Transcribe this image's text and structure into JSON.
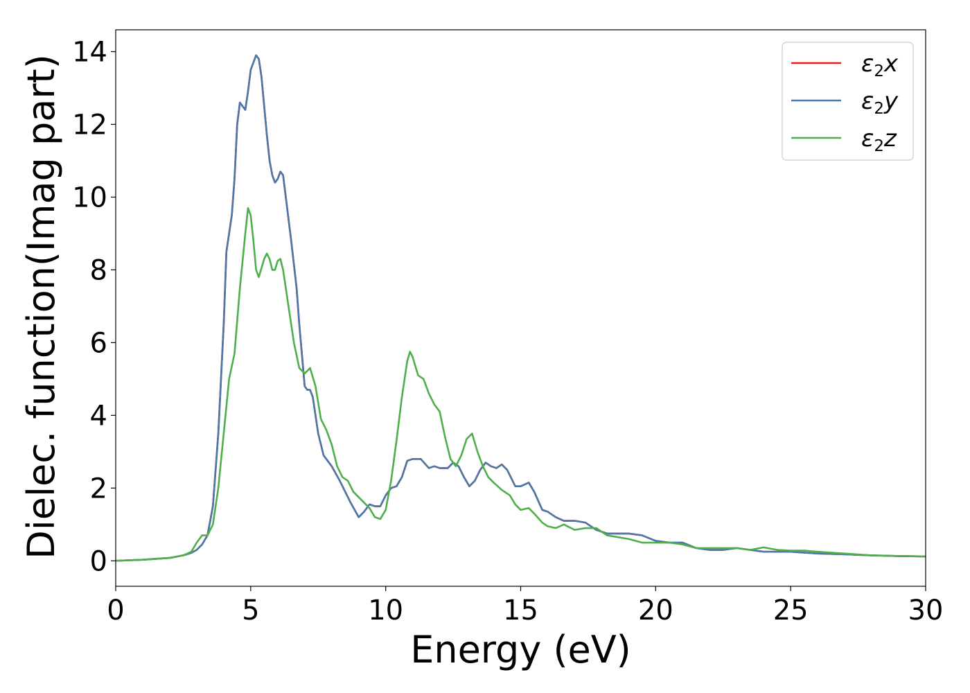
{
  "chart_data": {
    "type": "line",
    "title": "",
    "xlabel": "Energy (eV)",
    "ylabel": "Dielec. function(Imag part)",
    "xlim": [
      0,
      30
    ],
    "ylim": [
      -0.7,
      14.6
    ],
    "xticks": [
      0,
      5,
      10,
      15,
      20,
      25,
      30
    ],
    "yticks": [
      0,
      2,
      4,
      6,
      8,
      10,
      12,
      14
    ],
    "grid": false,
    "legend_position": "top-right",
    "series": [
      {
        "name": "ε2x",
        "legend_sub": "2",
        "legend_base": "ε",
        "legend_axis": "x",
        "color": "#e41a1c",
        "points": [
          [
            0,
            0
          ],
          [
            1,
            0.03
          ],
          [
            2,
            0.08
          ],
          [
            2.5,
            0.15
          ],
          [
            2.8,
            0.22
          ],
          [
            3.0,
            0.3
          ],
          [
            3.2,
            0.45
          ],
          [
            3.4,
            0.7
          ],
          [
            3.6,
            1.5
          ],
          [
            3.8,
            3.5
          ],
          [
            4.0,
            6.5
          ],
          [
            4.1,
            8.5
          ],
          [
            4.2,
            9.0
          ],
          [
            4.3,
            9.5
          ],
          [
            4.4,
            10.5
          ],
          [
            4.5,
            12.0
          ],
          [
            4.6,
            12.6
          ],
          [
            4.7,
            12.5
          ],
          [
            4.8,
            12.4
          ],
          [
            4.9,
            12.9
          ],
          [
            5.0,
            13.5
          ],
          [
            5.1,
            13.7
          ],
          [
            5.2,
            13.9
          ],
          [
            5.3,
            13.8
          ],
          [
            5.4,
            13.3
          ],
          [
            5.5,
            12.5
          ],
          [
            5.6,
            11.7
          ],
          [
            5.7,
            11.0
          ],
          [
            5.8,
            10.6
          ],
          [
            5.9,
            10.4
          ],
          [
            6.0,
            10.5
          ],
          [
            6.1,
            10.7
          ],
          [
            6.2,
            10.6
          ],
          [
            6.3,
            10.0
          ],
          [
            6.5,
            8.8
          ],
          [
            6.7,
            7.5
          ],
          [
            6.8,
            6.5
          ],
          [
            7.0,
            4.8
          ],
          [
            7.1,
            4.7
          ],
          [
            7.2,
            4.7
          ],
          [
            7.3,
            4.5
          ],
          [
            7.5,
            3.5
          ],
          [
            7.7,
            2.9
          ],
          [
            8.0,
            2.6
          ],
          [
            8.3,
            2.2
          ],
          [
            8.5,
            1.9
          ],
          [
            8.7,
            1.6
          ],
          [
            9.0,
            1.2
          ],
          [
            9.2,
            1.35
          ],
          [
            9.4,
            1.55
          ],
          [
            9.6,
            1.5
          ],
          [
            9.8,
            1.5
          ],
          [
            10.0,
            1.8
          ],
          [
            10.2,
            2.0
          ],
          [
            10.4,
            2.05
          ],
          [
            10.6,
            2.3
          ],
          [
            10.8,
            2.75
          ],
          [
            11.0,
            2.8
          ],
          [
            11.3,
            2.8
          ],
          [
            11.6,
            2.55
          ],
          [
            11.8,
            2.6
          ],
          [
            12.0,
            2.55
          ],
          [
            12.3,
            2.55
          ],
          [
            12.5,
            2.7
          ],
          [
            12.7,
            2.6
          ],
          [
            12.9,
            2.3
          ],
          [
            13.1,
            2.05
          ],
          [
            13.3,
            2.2
          ],
          [
            13.5,
            2.5
          ],
          [
            13.7,
            2.7
          ],
          [
            13.9,
            2.6
          ],
          [
            14.1,
            2.55
          ],
          [
            14.3,
            2.65
          ],
          [
            14.5,
            2.5
          ],
          [
            14.8,
            2.05
          ],
          [
            15.0,
            2.05
          ],
          [
            15.3,
            2.15
          ],
          [
            15.5,
            1.9
          ],
          [
            15.8,
            1.4
          ],
          [
            16.0,
            1.35
          ],
          [
            16.3,
            1.2
          ],
          [
            16.6,
            1.1
          ],
          [
            17.0,
            1.1
          ],
          [
            17.4,
            1.05
          ],
          [
            17.8,
            0.85
          ],
          [
            18.2,
            0.75
          ],
          [
            18.6,
            0.75
          ],
          [
            19.0,
            0.75
          ],
          [
            19.5,
            0.7
          ],
          [
            20.0,
            0.55
          ],
          [
            20.5,
            0.5
          ],
          [
            21.0,
            0.5
          ],
          [
            21.5,
            0.35
          ],
          [
            22.0,
            0.3
          ],
          [
            22.5,
            0.3
          ],
          [
            23.0,
            0.35
          ],
          [
            23.5,
            0.3
          ],
          [
            24.0,
            0.25
          ],
          [
            25.0,
            0.25
          ],
          [
            26.0,
            0.2
          ],
          [
            27.0,
            0.18
          ],
          [
            28.0,
            0.15
          ],
          [
            29.0,
            0.13
          ],
          [
            30.0,
            0.12
          ]
        ]
      },
      {
        "name": "ε2y",
        "legend_sub": "2",
        "legend_base": "ε",
        "legend_axis": "y",
        "color": "#4a78a8",
        "points": [
          [
            0,
            0
          ],
          [
            1,
            0.03
          ],
          [
            2,
            0.08
          ],
          [
            2.5,
            0.15
          ],
          [
            2.8,
            0.22
          ],
          [
            3.0,
            0.3
          ],
          [
            3.2,
            0.45
          ],
          [
            3.4,
            0.7
          ],
          [
            3.6,
            1.5
          ],
          [
            3.8,
            3.5
          ],
          [
            4.0,
            6.5
          ],
          [
            4.1,
            8.5
          ],
          [
            4.2,
            9.0
          ],
          [
            4.3,
            9.5
          ],
          [
            4.4,
            10.5
          ],
          [
            4.5,
            12.0
          ],
          [
            4.6,
            12.6
          ],
          [
            4.7,
            12.5
          ],
          [
            4.8,
            12.4
          ],
          [
            4.9,
            12.9
          ],
          [
            5.0,
            13.5
          ],
          [
            5.1,
            13.7
          ],
          [
            5.2,
            13.9
          ],
          [
            5.3,
            13.8
          ],
          [
            5.4,
            13.3
          ],
          [
            5.5,
            12.5
          ],
          [
            5.6,
            11.7
          ],
          [
            5.7,
            11.0
          ],
          [
            5.8,
            10.6
          ],
          [
            5.9,
            10.4
          ],
          [
            6.0,
            10.5
          ],
          [
            6.1,
            10.7
          ],
          [
            6.2,
            10.6
          ],
          [
            6.3,
            10.0
          ],
          [
            6.5,
            8.8
          ],
          [
            6.7,
            7.5
          ],
          [
            6.8,
            6.5
          ],
          [
            7.0,
            4.8
          ],
          [
            7.1,
            4.7
          ],
          [
            7.2,
            4.7
          ],
          [
            7.3,
            4.5
          ],
          [
            7.5,
            3.5
          ],
          [
            7.7,
            2.9
          ],
          [
            8.0,
            2.6
          ],
          [
            8.3,
            2.2
          ],
          [
            8.5,
            1.9
          ],
          [
            8.7,
            1.6
          ],
          [
            9.0,
            1.2
          ],
          [
            9.2,
            1.35
          ],
          [
            9.4,
            1.55
          ],
          [
            9.6,
            1.5
          ],
          [
            9.8,
            1.5
          ],
          [
            10.0,
            1.8
          ],
          [
            10.2,
            2.0
          ],
          [
            10.4,
            2.05
          ],
          [
            10.6,
            2.3
          ],
          [
            10.8,
            2.75
          ],
          [
            11.0,
            2.8
          ],
          [
            11.3,
            2.8
          ],
          [
            11.6,
            2.55
          ],
          [
            11.8,
            2.6
          ],
          [
            12.0,
            2.55
          ],
          [
            12.3,
            2.55
          ],
          [
            12.5,
            2.7
          ],
          [
            12.7,
            2.6
          ],
          [
            12.9,
            2.3
          ],
          [
            13.1,
            2.05
          ],
          [
            13.3,
            2.2
          ],
          [
            13.5,
            2.5
          ],
          [
            13.7,
            2.7
          ],
          [
            13.9,
            2.6
          ],
          [
            14.1,
            2.55
          ],
          [
            14.3,
            2.65
          ],
          [
            14.5,
            2.5
          ],
          [
            14.8,
            2.05
          ],
          [
            15.0,
            2.05
          ],
          [
            15.3,
            2.15
          ],
          [
            15.5,
            1.9
          ],
          [
            15.8,
            1.4
          ],
          [
            16.0,
            1.35
          ],
          [
            16.3,
            1.2
          ],
          [
            16.6,
            1.1
          ],
          [
            17.0,
            1.1
          ],
          [
            17.4,
            1.05
          ],
          [
            17.8,
            0.85
          ],
          [
            18.2,
            0.75
          ],
          [
            18.6,
            0.75
          ],
          [
            19.0,
            0.75
          ],
          [
            19.5,
            0.7
          ],
          [
            20.0,
            0.55
          ],
          [
            20.5,
            0.5
          ],
          [
            21.0,
            0.5
          ],
          [
            21.5,
            0.35
          ],
          [
            22.0,
            0.3
          ],
          [
            22.5,
            0.3
          ],
          [
            23.0,
            0.35
          ],
          [
            23.5,
            0.3
          ],
          [
            24.0,
            0.25
          ],
          [
            25.0,
            0.25
          ],
          [
            26.0,
            0.2
          ],
          [
            27.0,
            0.18
          ],
          [
            28.0,
            0.15
          ],
          [
            29.0,
            0.13
          ],
          [
            30.0,
            0.12
          ]
        ]
      },
      {
        "name": "ε2z",
        "legend_sub": "2",
        "legend_base": "ε",
        "legend_axis": "z",
        "color": "#4daf4a",
        "points": [
          [
            0,
            0
          ],
          [
            1,
            0.03
          ],
          [
            2,
            0.08
          ],
          [
            2.5,
            0.15
          ],
          [
            2.8,
            0.25
          ],
          [
            3.0,
            0.5
          ],
          [
            3.2,
            0.7
          ],
          [
            3.4,
            0.7
          ],
          [
            3.6,
            1.0
          ],
          [
            3.8,
            2.0
          ],
          [
            4.0,
            3.5
          ],
          [
            4.2,
            5.0
          ],
          [
            4.4,
            5.7
          ],
          [
            4.6,
            7.5
          ],
          [
            4.8,
            9.0
          ],
          [
            4.9,
            9.7
          ],
          [
            5.0,
            9.5
          ],
          [
            5.1,
            8.8
          ],
          [
            5.2,
            8.0
          ],
          [
            5.3,
            7.8
          ],
          [
            5.5,
            8.3
          ],
          [
            5.6,
            8.45
          ],
          [
            5.7,
            8.3
          ],
          [
            5.8,
            8.0
          ],
          [
            5.9,
            8.0
          ],
          [
            6.0,
            8.25
          ],
          [
            6.1,
            8.3
          ],
          [
            6.2,
            8.0
          ],
          [
            6.4,
            7.0
          ],
          [
            6.6,
            6.0
          ],
          [
            6.8,
            5.3
          ],
          [
            7.0,
            5.15
          ],
          [
            7.2,
            5.3
          ],
          [
            7.4,
            4.8
          ],
          [
            7.6,
            3.9
          ],
          [
            7.8,
            3.6
          ],
          [
            8.0,
            3.2
          ],
          [
            8.2,
            2.6
          ],
          [
            8.4,
            2.3
          ],
          [
            8.6,
            2.2
          ],
          [
            8.8,
            1.9
          ],
          [
            9.0,
            1.75
          ],
          [
            9.2,
            1.6
          ],
          [
            9.4,
            1.45
          ],
          [
            9.6,
            1.2
          ],
          [
            9.8,
            1.15
          ],
          [
            10.0,
            1.4
          ],
          [
            10.2,
            2.2
          ],
          [
            10.4,
            3.3
          ],
          [
            10.6,
            4.5
          ],
          [
            10.8,
            5.5
          ],
          [
            10.9,
            5.75
          ],
          [
            11.0,
            5.6
          ],
          [
            11.2,
            5.1
          ],
          [
            11.4,
            5.0
          ],
          [
            11.6,
            4.6
          ],
          [
            11.8,
            4.3
          ],
          [
            12.0,
            4.1
          ],
          [
            12.2,
            3.4
          ],
          [
            12.4,
            2.8
          ],
          [
            12.6,
            2.6
          ],
          [
            12.8,
            2.9
          ],
          [
            13.0,
            3.35
          ],
          [
            13.2,
            3.5
          ],
          [
            13.4,
            3.0
          ],
          [
            13.6,
            2.6
          ],
          [
            13.8,
            2.3
          ],
          [
            14.0,
            2.15
          ],
          [
            14.3,
            1.95
          ],
          [
            14.6,
            1.8
          ],
          [
            14.8,
            1.55
          ],
          [
            15.0,
            1.4
          ],
          [
            15.3,
            1.45
          ],
          [
            15.5,
            1.3
          ],
          [
            15.8,
            1.05
          ],
          [
            16.0,
            0.95
          ],
          [
            16.3,
            0.9
          ],
          [
            16.6,
            1.0
          ],
          [
            17.0,
            0.85
          ],
          [
            17.4,
            0.9
          ],
          [
            17.8,
            0.9
          ],
          [
            18.2,
            0.7
          ],
          [
            18.6,
            0.65
          ],
          [
            19.0,
            0.6
          ],
          [
            19.5,
            0.5
          ],
          [
            20.0,
            0.5
          ],
          [
            20.5,
            0.5
          ],
          [
            21.0,
            0.45
          ],
          [
            21.5,
            0.35
          ],
          [
            22.0,
            0.35
          ],
          [
            22.5,
            0.35
          ],
          [
            23.0,
            0.35
          ],
          [
            23.5,
            0.3
          ],
          [
            24.0,
            0.37
          ],
          [
            24.5,
            0.3
          ],
          [
            25.0,
            0.28
          ],
          [
            25.5,
            0.28
          ],
          [
            26.0,
            0.25
          ],
          [
            27.0,
            0.2
          ],
          [
            28.0,
            0.15
          ],
          [
            29.0,
            0.13
          ],
          [
            30.0,
            0.12
          ]
        ]
      }
    ]
  }
}
